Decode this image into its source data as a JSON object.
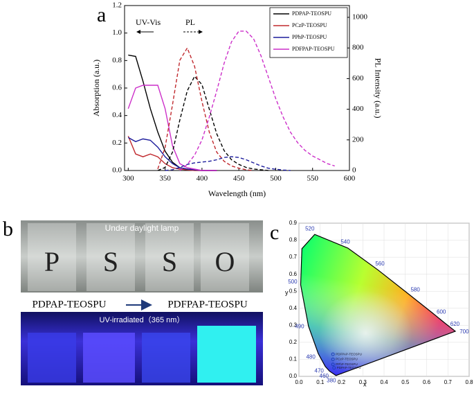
{
  "panel_labels": [
    "a",
    "b",
    "c"
  ],
  "chart_data": [
    {
      "type": "line",
      "xlabel": "Wavelength (nm)",
      "ylabel": "Absorption (a.u.)",
      "y2label": "PL Intensity (a.u.)",
      "annotations": [
        "UV-Vis",
        "PL"
      ],
      "xlim": [
        295,
        600
      ],
      "xticks": [
        300,
        350,
        400,
        450,
        500,
        550,
        600
      ],
      "ylim": [
        0,
        1.2
      ],
      "yticks": [
        {
          "value": 0,
          "label": "0.0"
        },
        0.2,
        0.4,
        0.6,
        0.8,
        {
          "value": 1,
          "label": "1.0"
        },
        1.2
      ],
      "y2lim": [
        0,
        1077
      ],
      "y2ticks": [
        0,
        200,
        400,
        600,
        800,
        1000
      ],
      "x": [
        300,
        310,
        320,
        330,
        340,
        350,
        360,
        370,
        380,
        390,
        400,
        410,
        420,
        430,
        440,
        450,
        460,
        470,
        480,
        490,
        500,
        510,
        520,
        530,
        540,
        550,
        560,
        570,
        580
      ],
      "series": [
        {
          "name": "PDPAP-TEOSPU",
          "color": "#000000",
          "values": [
            0.84,
            0.83,
            0.65,
            0.45,
            0.28,
            0.14,
            0.06,
            0.02,
            0.01,
            0.005,
            0,
            0,
            0,
            null,
            null,
            null,
            null,
            null,
            null,
            null,
            null,
            null,
            null,
            null,
            null,
            null,
            null,
            null,
            null
          ]
        },
        {
          "name": "PCzP-TEOSPU",
          "color": "#c0282d",
          "values": [
            0.25,
            0.12,
            0.1,
            0.12,
            0.1,
            0.05,
            0.02,
            0.01,
            0.005,
            0,
            0,
            0,
            0,
            null,
            null,
            null,
            null,
            null,
            null,
            null,
            null,
            null,
            null,
            null,
            null,
            null,
            null,
            null,
            null
          ]
        },
        {
          "name": "PPhP-TEOSPU",
          "color": "#1c1c9c",
          "values": [
            0.24,
            0.21,
            0.23,
            0.22,
            0.17,
            0.1,
            0.05,
            0.02,
            0.01,
            0.005,
            0,
            0,
            0,
            null,
            null,
            null,
            null,
            null,
            null,
            null,
            null,
            null,
            null,
            null,
            null,
            null,
            null,
            null,
            null
          ]
        },
        {
          "name": "PDFPAP-TEOSPU",
          "color": "#cc2fc9",
          "values": [
            0.45,
            0.6,
            0.62,
            0.62,
            0.62,
            0.45,
            0.18,
            0.05,
            0.02,
            0.01,
            0,
            0,
            0,
            null,
            null,
            null,
            null,
            null,
            null,
            null,
            null,
            null,
            null,
            null,
            null,
            null,
            null,
            null,
            null
          ]
        },
        {
          "name": "PDPAP-TEOSPU",
          "color": "#000000",
          "axis": "y2",
          "dashed": true,
          "values": [
            null,
            null,
            null,
            null,
            0,
            20,
            120,
            330,
            520,
            615,
            560,
            400,
            240,
            130,
            70,
            40,
            20,
            10,
            5,
            0,
            null,
            null,
            null,
            null,
            null,
            null,
            null,
            null,
            null
          ]
        },
        {
          "name": "PCzP-TEOSPU",
          "color": "#c0282d",
          "axis": "y2",
          "dashed": true,
          "values": [
            null,
            null,
            null,
            null,
            10,
            150,
            430,
            720,
            800,
            680,
            450,
            250,
            120,
            60,
            30,
            15,
            5,
            0,
            null,
            null,
            null,
            null,
            null,
            null,
            null,
            null,
            null,
            null,
            null
          ]
        },
        {
          "name": "PPhP-TEOSPU",
          "color": "#1c1c9c",
          "axis": "y2",
          "dashed": true,
          "values": [
            null,
            null,
            null,
            null,
            null,
            0,
            5,
            20,
            40,
            50,
            55,
            60,
            70,
            85,
            90,
            85,
            70,
            50,
            30,
            15,
            8,
            3,
            0,
            null,
            null,
            null,
            null,
            null,
            null
          ]
        },
        {
          "name": "PDFPAP-TEOSPU",
          "color": "#cc2fc9",
          "axis": "y2",
          "dashed": true,
          "values": [
            null,
            null,
            null,
            null,
            null,
            null,
            null,
            0,
            40,
            100,
            200,
            350,
            520,
            700,
            840,
            910,
            910,
            860,
            750,
            610,
            470,
            350,
            250,
            180,
            130,
            95,
            70,
            45,
            30
          ]
        }
      ],
      "legend": "upper right"
    },
    {
      "type": "scatter",
      "xlabel": "x",
      "ylabel": "y",
      "xlim": [
        0,
        0.8
      ],
      "xticks": [
        {
          "value": 0,
          "label": "0.0"
        },
        0.1,
        0.2,
        0.3,
        0.4,
        0.5,
        0.6,
        0.7,
        0.8
      ],
      "ylim": [
        0,
        0.9
      ],
      "yticks": [
        {
          "value": 0,
          "label": "0.0"
        },
        0.1,
        0.2,
        0.3,
        0.4,
        0.5,
        0.6,
        0.7,
        0.8,
        0.9
      ],
      "locus": {
        "x": [
          0.1741,
          0.144,
          0.124,
          0.091,
          0.045,
          0.008,
          0.014,
          0.074,
          0.23,
          0.373,
          0.512,
          0.627,
          0.691,
          0.735
        ],
        "y": [
          0.005,
          0.03,
          0.058,
          0.133,
          0.295,
          0.538,
          0.75,
          0.834,
          0.754,
          0.624,
          0.487,
          0.373,
          0.308,
          0.265
        ],
        "labels": [
          "380",
          "460",
          "470",
          "480",
          "490",
          "500",
          null,
          "520",
          "540",
          "560",
          "580",
          "600",
          "620",
          "700"
        ]
      },
      "series": [
        {
          "name": "PDFPAP-TEOSPU",
          "color": "#1c3fb8",
          "x": [
            0.16
          ],
          "values": [
            0.13
          ]
        },
        {
          "name": "PCzP-TEOSPU",
          "color": "#1c3fb8",
          "x": [
            0.16
          ],
          "values": [
            0.1
          ]
        },
        {
          "name": "PPhP-TEOSPU",
          "color": "#1c3fb8",
          "x": [
            0.16
          ],
          "values": [
            0.07
          ]
        },
        {
          "name": "PDPAP-TEOSPU",
          "color": "#1c3fb8",
          "x": [
            0.165
          ],
          "values": [
            0.05
          ]
        }
      ]
    }
  ],
  "photo": {
    "top_caption": "Under daylight lamp",
    "letters": [
      "P",
      "S",
      "S",
      "O"
    ],
    "from": "PDPAP-TEOSPU",
    "to": "PDFPAP-TEOSPU",
    "bottom_caption": "UV-irradiated（365 nm）"
  }
}
